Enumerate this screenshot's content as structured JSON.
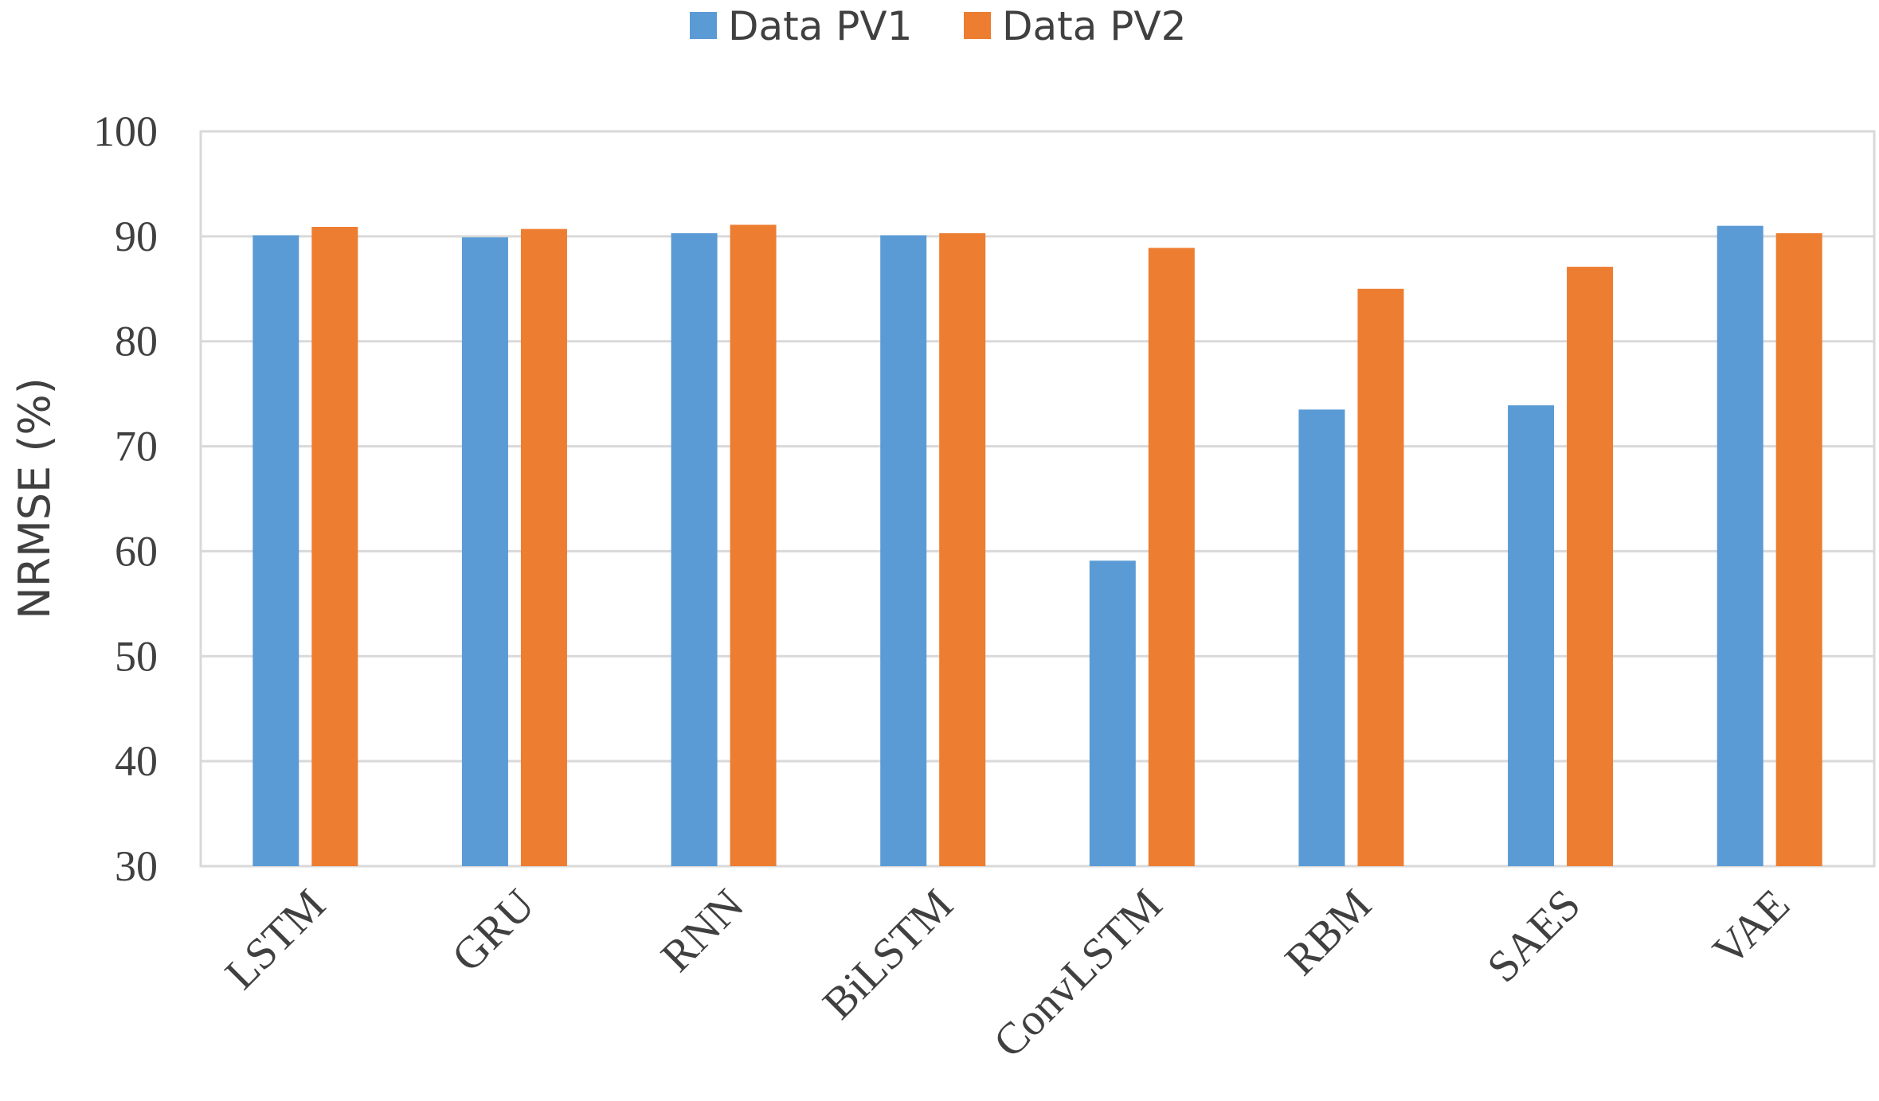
{
  "chart_data": {
    "type": "bar",
    "categories": [
      "LSTM",
      "GRU",
      "RNN",
      "BiLSTM",
      "ConvLSTM",
      "RBM",
      "SAES",
      "VAE"
    ],
    "series": [
      {
        "name": "Data PV1",
        "color": "#5b9bd5",
        "values": [
          90.1,
          89.9,
          90.3,
          90.1,
          59.1,
          73.5,
          73.9,
          91.0
        ]
      },
      {
        "name": "Data PV2",
        "color": "#ed7d31",
        "values": [
          90.9,
          90.7,
          91.1,
          90.3,
          88.9,
          85.0,
          87.1,
          90.3
        ]
      }
    ],
    "title": "",
    "xlabel": "",
    "ylabel": "NRMSE (%)",
    "ylim": [
      30,
      100
    ],
    "yticks": [
      30,
      40,
      50,
      60,
      70,
      80,
      90,
      100
    ],
    "grid": true,
    "legend_position": "top-center",
    "colors": {
      "grid": "#d9d9d9",
      "text": "#404040"
    }
  }
}
